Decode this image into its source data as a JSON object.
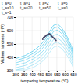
{
  "chart_data": {
    "type": "line",
    "xlabel": "tempering temperature (°C)",
    "ylabel": "Vickers hardness (HV)",
    "xlim": [
      300,
      650
    ],
    "ylim": [
      300,
      700
    ],
    "xticks": [
      300,
      350,
      400,
      450,
      500,
      550,
      600,
      650
    ],
    "yticks": [
      300,
      400,
      500,
      600,
      700
    ],
    "grid": true,
    "series": [
      {
        "type": "line",
        "color": "#55ccee",
        "x": [
          300,
          360,
          410,
          450,
          480,
          505,
          530,
          555,
          580,
          610,
          640,
          650
        ],
        "values": [
          390,
          415,
          450,
          490,
          535,
          590,
          640,
          650,
          620,
          560,
          480,
          440
        ]
      },
      {
        "type": "line",
        "color": "#55ccee",
        "x": [
          300,
          360,
          410,
          450,
          480,
          505,
          530,
          555,
          580,
          610,
          640,
          650
        ],
        "values": [
          375,
          398,
          432,
          470,
          514,
          568,
          618,
          628,
          600,
          542,
          462,
          422
        ]
      },
      {
        "type": "line",
        "color": "#55ccee",
        "x": [
          300,
          360,
          410,
          450,
          480,
          505,
          530,
          555,
          580,
          610,
          640,
          650
        ],
        "values": [
          358,
          380,
          412,
          450,
          492,
          544,
          594,
          604,
          577,
          522,
          444,
          404
        ]
      },
      {
        "type": "line",
        "color": "#55ccee",
        "x": [
          300,
          360,
          410,
          450,
          480,
          505,
          530,
          555,
          580,
          610,
          640,
          650
        ],
        "values": [
          340,
          360,
          390,
          426,
          466,
          516,
          564,
          574,
          548,
          496,
          420,
          382
        ]
      },
      {
        "type": "line",
        "color": "#55ccee",
        "x": [
          300,
          360,
          410,
          450,
          480,
          505,
          530,
          555,
          580,
          610,
          640,
          650
        ],
        "values": [
          322,
          340,
          368,
          402,
          440,
          488,
          534,
          544,
          520,
          470,
          398,
          360
        ]
      },
      {
        "type": "line",
        "color": "#55ccee",
        "x": [
          300,
          360,
          410,
          450,
          480,
          505,
          530,
          555,
          580,
          610,
          640,
          650
        ],
        "values": [
          305,
          320,
          346,
          378,
          414,
          460,
          504,
          514,
          492,
          444,
          374,
          338
        ]
      },
      {
        "type": "line",
        "color": "#55ccee",
        "x": [
          300,
          360,
          410,
          450,
          480,
          505,
          530,
          555,
          580,
          610,
          640,
          650
        ],
        "values": [
          305,
          306,
          326,
          356,
          390,
          434,
          476,
          486,
          466,
          420,
          352,
          318
        ]
      },
      {
        "type": "scatter",
        "color": "#444466",
        "x": [
          465,
          470,
          475,
          480,
          485,
          490,
          495,
          500,
          505,
          508,
          512,
          516,
          520,
          525,
          530,
          535,
          540,
          545
        ],
        "values": [
          535,
          548,
          552,
          558,
          562,
          568,
          572,
          574,
          576,
          572,
          568,
          564,
          558,
          552,
          546,
          540,
          532,
          526
        ]
      }
    ],
    "annotations": [
      "t_a=0",
      "t_a=1",
      "t_a=2",
      "t_a=5",
      "t_a=10",
      "t_a=20",
      "t_a=50",
      "t_a=0",
      "t_a=1"
    ]
  }
}
